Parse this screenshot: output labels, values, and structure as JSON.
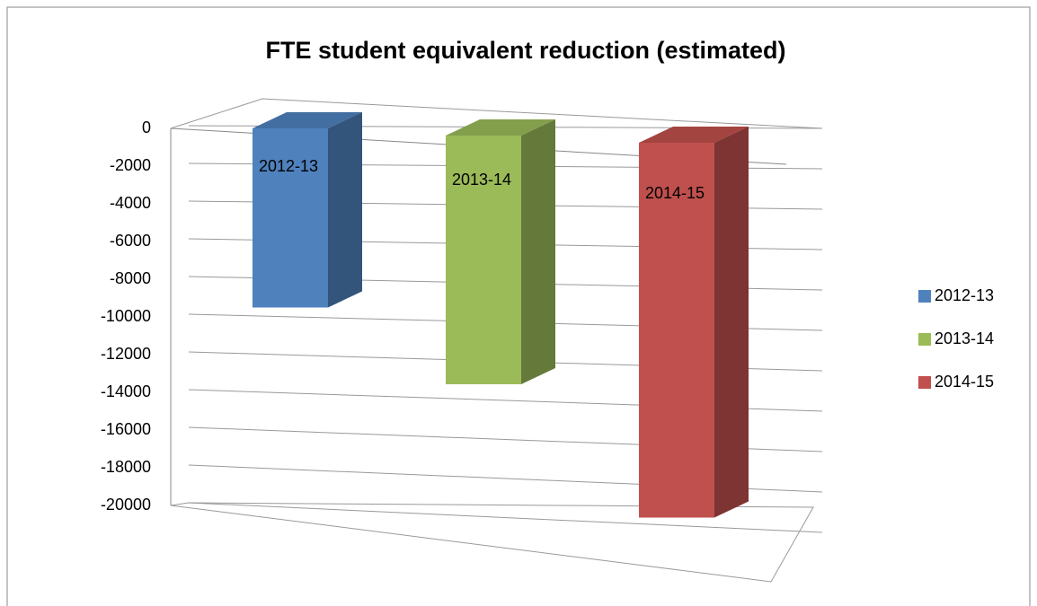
{
  "chart_data": {
    "type": "bar3d",
    "title": "FTE student equivalent reduction (estimated)",
    "categories": [
      "2012-13",
      "2013-14",
      "2014-15"
    ],
    "values": [
      -9500,
      -13000,
      -19500
    ],
    "colors": [
      "#4f81bd",
      "#9bbb59",
      "#c0504d"
    ],
    "ylim": [
      -20000,
      0
    ],
    "yticks": [
      0,
      -2000,
      -4000,
      -6000,
      -8000,
      -10000,
      -12000,
      -14000,
      -16000,
      -18000,
      -20000
    ],
    "grid": true,
    "legend": "right"
  }
}
